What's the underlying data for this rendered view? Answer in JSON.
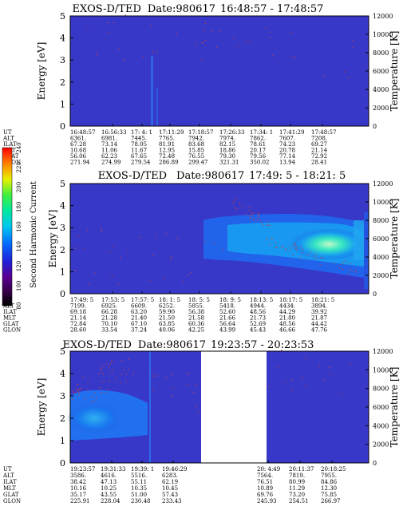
{
  "chart_data": [
    {
      "type": "heatmap",
      "title": "EXOS-D/TED",
      "date_label": "Date:980617",
      "time_range": "16:48:57 - 17:48:57",
      "ylabel": "Energy [eV]",
      "ylim": [
        0,
        5
      ],
      "yticks": [
        "0",
        "1",
        "2",
        "3",
        "4",
        "5"
      ],
      "y2label": "Temperature [K]",
      "y2lim": [
        0,
        12000
      ],
      "y2ticks": [
        "0",
        "2000",
        "4000",
        "6000",
        "8000",
        "10000",
        "12000"
      ],
      "rows": [
        {
          "label": "UT",
          "values": [
            "16:48:57",
            "16:56:33",
            "17: 4: 1",
            "17:11:29",
            "17:18:57",
            "17:26:33",
            "17:34: 1",
            "17:41:29",
            "17:48:57"
          ]
        },
        {
          "label": "ALT",
          "values": [
            "6361.",
            "6981.",
            "7445.",
            "7765.",
            "7942.",
            "7974.",
            "7862.",
            "7607.",
            "7208."
          ]
        },
        {
          "label": "ILAT",
          "values": [
            "67.28",
            "73.14",
            "78.05",
            "81.91",
            "83.68",
            "82.15",
            "78.61",
            "74.23",
            "69.27"
          ]
        },
        {
          "label": "MLT",
          "values": [
            "10.68",
            "11.06",
            "11.67",
            "12.95",
            "15.85",
            "18.86",
            "20.17",
            "20.78",
            "21.14"
          ]
        },
        {
          "label": "GLAT",
          "values": [
            "56.06",
            "62.23",
            "67.65",
            "72.48",
            "76.55",
            "79.30",
            "79.56",
            "77.14",
            "72.92"
          ]
        },
        {
          "label": "GLON",
          "values": [
            "271.94",
            "274.99",
            "279.54",
            "286.89",
            "299.47",
            "321.31",
            "350.02",
            "13.94",
            "28.41"
          ]
        }
      ]
    },
    {
      "type": "heatmap",
      "title": "EXOS-D/TED",
      "date_label": "Date:980617",
      "time_range": "17:49: 5 - 18:21: 5",
      "ylabel": "Energy [eV]",
      "ylim": [
        0,
        5
      ],
      "yticks": [
        "0",
        "1",
        "2",
        "3",
        "4",
        "5"
      ],
      "y2label": "Temperature [K]",
      "y2lim": [
        0,
        12000
      ],
      "y2ticks": [
        "0",
        "2000",
        "4000",
        "6000",
        "8000",
        "10000",
        "12000"
      ],
      "rows": [
        {
          "label": "UT",
          "values": [
            "17:49: 5",
            "17:53: 5",
            "17:57: 5",
            "18: 1: 5",
            "18: 5: 5",
            "18: 9: 5",
            "18:13: 5",
            "18:17: 5",
            "18:21: 5"
          ]
        },
        {
          "label": "ALT",
          "values": [
            "7199.",
            "6925.",
            "6609.",
            "6252.",
            "5855.",
            "5418.",
            "4944.",
            "4434.",
            "3894."
          ]
        },
        {
          "label": "ILAT",
          "values": [
            "69.18",
            "66.28",
            "63.20",
            "59.90",
            "56.38",
            "52.60",
            "48.56",
            "44.29",
            "39.92"
          ]
        },
        {
          "label": "MLT",
          "values": [
            "21.14",
            "21.28",
            "21.40",
            "21.50",
            "21.58",
            "21.66",
            "21.73",
            "21.80",
            "21.87"
          ]
        },
        {
          "label": "GLAT",
          "values": [
            "72.84",
            "70.10",
            "67.10",
            "63.85",
            "60.36",
            "56.64",
            "52.69",
            "48.56",
            "44.42"
          ]
        },
        {
          "label": "GLON",
          "values": [
            "28.60",
            "33.54",
            "37.24",
            "40.06",
            "42.25",
            "43.99",
            "45.43",
            "46.66",
            "47.76"
          ]
        }
      ]
    },
    {
      "type": "heatmap",
      "title": "EXOS-D/TED",
      "date_label": "Date:980617",
      "time_range": "19:23:57 - 20:23:53",
      "ylabel": "Energy [eV]",
      "ylim": [
        0,
        5
      ],
      "yticks": [
        "0",
        "1",
        "2",
        "3",
        "4",
        "5"
      ],
      "y2label": "Temperature [K]",
      "y2lim": [
        0,
        12000
      ],
      "y2ticks": [
        "0",
        "2000",
        "4000",
        "6000",
        "8000",
        "10000",
        "12000"
      ],
      "rows": [
        {
          "label": "UT",
          "values": [
            "19:23:57",
            "19:31:33",
            "19:39: 1",
            "19:46:29",
            "",
            "20: 4:49",
            "20:11:37",
            "20:18:25"
          ]
        },
        {
          "label": "ALT",
          "values": [
            "3586.",
            "4616.",
            "5516.",
            "6283.",
            "",
            "7564.",
            "7819.",
            "7955."
          ]
        },
        {
          "label": "ILAT",
          "values": [
            "38.42",
            "47.13",
            "55.11",
            "62.19",
            "",
            "76.51",
            "80.99",
            "84.86"
          ]
        },
        {
          "label": "MLT",
          "values": [
            "10.16",
            "10.25",
            "10.35",
            "10.45",
            "",
            "10.89",
            "11.29",
            "12.30"
          ]
        },
        {
          "label": "GLAT",
          "values": [
            "35.17",
            "43.55",
            "51.00",
            "57.43",
            "",
            "69.76",
            "73.20",
            "75.85"
          ]
        },
        {
          "label": "GLON",
          "values": [
            "225.91",
            "228.04",
            "230.48",
            "233.43",
            "",
            "245.93",
            "254.51",
            "266.97"
          ]
        }
      ]
    }
  ],
  "colorbar": {
    "label": "Second Harmonic Current",
    "ticks": [
      "80",
      "100",
      "120",
      "140",
      "160",
      "180",
      "200",
      "220",
      "240"
    ],
    "range": [
      80,
      240
    ]
  },
  "colors": {
    "background": "#3838c8",
    "band_dim": "#2070f0",
    "band_mid": "#18a8f0",
    "band_bright": "#30e8c8",
    "band_peak": "#a8f8c8",
    "gap": "#ffffff",
    "dots": "#c04040"
  }
}
